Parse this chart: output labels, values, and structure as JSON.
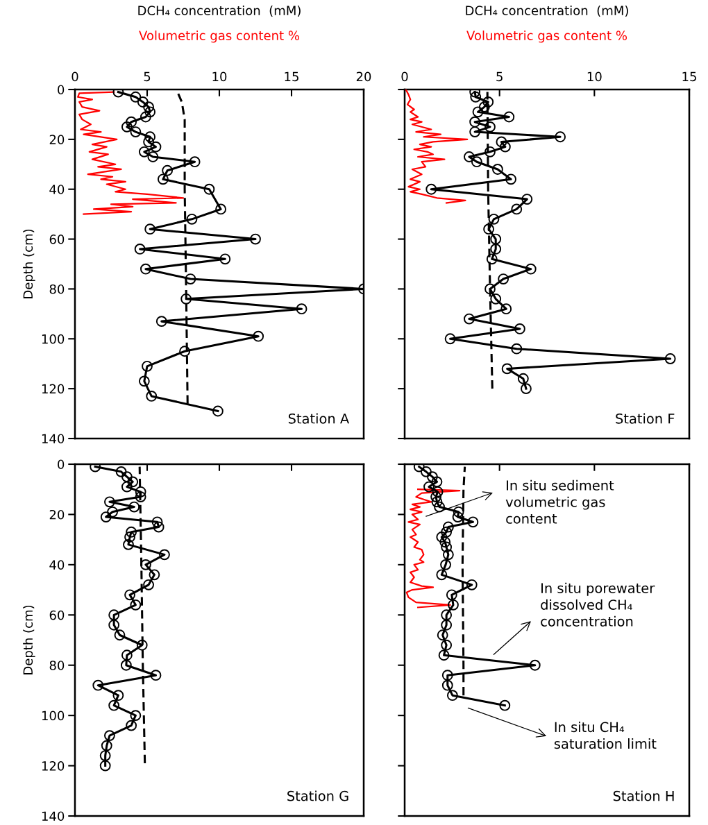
{
  "chart_data": [
    {
      "type": "line",
      "xlabel": "DCH₄ concentration  (mM)",
      "ylabel": "Depth (cm)",
      "xlim": [
        0,
        20
      ],
      "xticks": [
        0,
        5,
        10,
        15,
        20
      ],
      "ylim": [
        140,
        0
      ],
      "yticks": [
        0,
        20,
        40,
        60,
        80,
        100,
        120,
        140
      ],
      "annotations": [
        "Station A"
      ],
      "series": [
        {
          "name": "Volumetric gas content %",
          "color": "#ff0000",
          "marker": "none",
          "line_style": "solid",
          "x": [
            2.7,
            0.3,
            0.2,
            1.2,
            0.3,
            0.5,
            1.7,
            0.3,
            0.5,
            1.1,
            0.4,
            1.8,
            0.6,
            2.9,
            1.2,
            2.2,
            1.0,
            2.3,
            1.2,
            2.8,
            1.6,
            3.2,
            0.9,
            2.6,
            1.8,
            3.5,
            2.2,
            3.5,
            2.8,
            5.0,
            7.5,
            4.0,
            7.0,
            2.5,
            4.0,
            1.3,
            3.9,
            0.6
          ],
          "values": [
            1,
            1.5,
            3,
            4,
            5,
            7,
            8.5,
            10,
            12,
            14,
            16,
            17,
            18,
            20,
            22,
            23,
            25,
            26,
            28,
            30,
            31,
            32,
            34,
            35,
            36,
            37,
            38,
            40,
            41,
            42,
            43.5,
            44,
            45.5,
            46,
            47,
            48,
            49,
            50
          ]
        },
        {
          "color": "#000000",
          "marker": "circle",
          "line_style": "solid",
          "x": [
            3.0,
            4.2,
            4.7,
            5.1,
            5.2,
            4.9,
            3.9,
            3.6,
            4.2,
            5.2,
            5.1,
            5.6,
            4.8,
            5.4,
            8.3,
            6.4,
            6.1,
            9.3,
            10.1,
            8.1,
            5.2,
            12.5,
            4.5,
            10.4,
            4.9,
            8.0,
            20.0,
            7.7,
            15.7,
            6.0,
            12.7,
            7.6,
            5.0,
            4.8,
            5.3,
            9.9
          ],
          "values": [
            1,
            3,
            5,
            7,
            9,
            11,
            13,
            15,
            17,
            19,
            21,
            23,
            25,
            27,
            29,
            32.5,
            36,
            40,
            48,
            52,
            56,
            60,
            64,
            68,
            72,
            76,
            80,
            84,
            88,
            93,
            99,
            105,
            111,
            117,
            123,
            129
          ]
        },
        {
          "color": "#000000",
          "marker": "none",
          "line_style": "dashed",
          "x": [
            7.1,
            7.4,
            7.6,
            7.6,
            7.7,
            7.8
          ],
          "values": [
            1,
            5,
            12,
            40,
            80,
            126
          ]
        }
      ]
    },
    {
      "type": "line",
      "xlabel": "DCH₄ concentration  (mM)",
      "xlim": [
        0,
        15
      ],
      "xticks": [
        0,
        5,
        10,
        15
      ],
      "ylim": [
        140,
        0
      ],
      "yticks": [
        0,
        20,
        40,
        60,
        80,
        100,
        120,
        140
      ],
      "tick_labels": "x",
      "annotations": [
        "Station F"
      ],
      "series": [
        {
          "name": "Volumetric gas content %",
          "color": "#ff0000",
          "marker": "none",
          "line_style": "solid",
          "x": [
            0.06,
            0.2,
            0.3,
            0.15,
            0.5,
            0.3,
            0.7,
            0.3,
            0.9,
            0.4,
            1.4,
            0.6,
            1.9,
            1.0,
            3.3,
            1.5,
            0.8,
            1.4,
            0.5,
            1.2,
            1.5,
            0.7,
            2.1,
            0.9,
            1.1,
            0.4,
            0.9,
            0.3,
            0.8,
            0.2,
            0.8,
            0.3,
            0.9,
            1.7,
            3.2,
            2.2
          ],
          "values": [
            0,
            2,
            4,
            6,
            8,
            9,
            11,
            12,
            13,
            14,
            16,
            17,
            18,
            19,
            20,
            21,
            22,
            23,
            24,
            25,
            26,
            27,
            28,
            29,
            31,
            32,
            34,
            36,
            37,
            39,
            40,
            41,
            42,
            43.5,
            44.5,
            45.5
          ]
        },
        {
          "color": "#000000",
          "marker": "circle",
          "line_style": "solid",
          "x": [
            3.7,
            3.74,
            4.4,
            4.2,
            3.86,
            5.5,
            3.7,
            4.5,
            3.7,
            8.2,
            5.1,
            5.3,
            4.5,
            3.4,
            3.8,
            4.9,
            5.6,
            1.4,
            6.45,
            5.9,
            4.7,
            4.43,
            4.8,
            4.8,
            4.6,
            6.65,
            5.2,
            4.5,
            4.8,
            5.35,
            3.4,
            6.07,
            2.4,
            5.9,
            14.0,
            5.4,
            6.25,
            6.4
          ],
          "values": [
            1,
            3,
            5,
            7,
            9,
            11,
            13,
            15,
            17,
            19,
            21,
            23,
            25,
            27,
            29,
            32,
            36,
            40,
            44,
            48,
            52,
            56,
            60,
            64,
            68,
            72,
            76,
            80,
            84,
            88,
            92,
            96,
            100,
            104,
            108,
            112,
            116,
            120
          ]
        },
        {
          "color": "#000000",
          "marker": "none",
          "line_style": "dashed",
          "x": [
            4.36,
            4.4,
            4.5,
            4.62
          ],
          "values": [
            1,
            40,
            80,
            120
          ]
        }
      ]
    },
    {
      "type": "line",
      "ylabel": "Depth (cm)",
      "xlim": [
        0,
        20
      ],
      "xticks": [
        0,
        5,
        10,
        15,
        20
      ],
      "ylim": [
        140,
        0
      ],
      "yticks": [
        0,
        20,
        40,
        60,
        80,
        100,
        120,
        140
      ],
      "tick_labels": "y",
      "annotations": [
        "Station G"
      ],
      "series": [
        {
          "color": "#000000",
          "marker": "circle",
          "line_style": "solid",
          "x": [
            1.4,
            3.2,
            3.6,
            4.0,
            3.6,
            4.55,
            4.55,
            2.4,
            4.1,
            2.6,
            2.15,
            5.7,
            5.8,
            3.9,
            3.8,
            3.7,
            6.2,
            4.9,
            5.5,
            5.1,
            3.8,
            4.2,
            2.7,
            2.7,
            3.1,
            4.65,
            3.6,
            3.55,
            5.6,
            1.6,
            3.0,
            2.7,
            4.2,
            3.9,
            2.4,
            2.2,
            2.1,
            2.1
          ],
          "values": [
            1,
            3,
            5,
            7,
            9,
            11,
            13,
            15,
            17,
            19,
            21,
            23,
            25,
            27,
            29,
            32,
            36,
            40,
            44,
            48,
            52,
            56,
            60,
            64,
            68,
            72,
            76,
            80,
            84,
            88,
            92,
            96,
            100,
            104,
            108,
            112,
            116,
            120
          ]
        },
        {
          "color": "#000000",
          "marker": "none",
          "line_style": "dashed",
          "x": [
            4.48,
            4.6,
            4.7,
            4.84
          ],
          "values": [
            1,
            40,
            80,
            119
          ]
        }
      ]
    },
    {
      "type": "line",
      "xlim": [
        0,
        15
      ],
      "xticks": [
        0,
        5,
        10,
        15
      ],
      "ylim": [
        140,
        0
      ],
      "yticks": [
        0,
        20,
        40,
        60,
        80,
        100,
        120,
        140
      ],
      "tick_labels": false,
      "annotations": [
        "Station H",
        "In situ sediment\nvolumetric gas\ncontent",
        "In situ porewater\ndissolved CH₄\nconcentration",
        "In situ CH₄\nsaturation limit"
      ],
      "series": [
        {
          "color": "#ff0000",
          "marker": "none",
          "line_style": "solid",
          "x": [
            0.7,
            2.9,
            0.9,
            0.6,
            1.0,
            1.4,
            0.4,
            0.8,
            0.3,
            0.9,
            0.4,
            0.7,
            0.2,
            0.8,
            0.4,
            0.6,
            0.3,
            0.7,
            0.5,
            0.9,
            1.0,
            0.8,
            1.0,
            0.5,
            0.7,
            0.3,
            0.5,
            0.3,
            0.9,
            1.5,
            0.4,
            0.1,
            0.2,
            0.6,
            2.4,
            0.7
          ],
          "values": [
            10,
            10.5,
            11.5,
            13,
            14,
            15,
            16,
            17,
            18,
            19,
            20,
            22,
            23,
            24,
            26,
            28,
            29,
            31,
            33,
            34,
            36,
            38,
            39,
            40,
            42,
            43,
            45,
            47,
            48.5,
            49,
            50,
            51,
            53,
            55,
            56,
            57
          ]
        },
        {
          "color": "#000000",
          "marker": "circle",
          "line_style": "solid",
          "x": [
            0.76,
            1.13,
            1.46,
            1.7,
            1.28,
            1.74,
            1.65,
            1.7,
            1.83,
            2.84,
            2.8,
            3.6,
            2.3,
            2.2,
            1.95,
            2.13,
            2.2,
            2.3,
            2.16,
            1.95,
            3.54,
            2.48,
            2.56,
            2.2,
            2.2,
            2.0,
            2.2,
            2.07,
            6.87,
            2.26,
            2.26,
            2.52,
            5.28
          ],
          "values": [
            1,
            3,
            5,
            7,
            9,
            11,
            13,
            15,
            17,
            19,
            21,
            23,
            25,
            27,
            29,
            31,
            33,
            36,
            40,
            44,
            48,
            52,
            56,
            60,
            64,
            68,
            72,
            76,
            80,
            84,
            88,
            92,
            96
          ]
        },
        {
          "color": "#000000",
          "marker": "none",
          "line_style": "dashed",
          "x": [
            3.17,
            3.1,
            3.05,
            3.1,
            3.1
          ],
          "values": [
            1,
            10,
            40,
            80,
            92
          ]
        }
      ]
    }
  ]
}
